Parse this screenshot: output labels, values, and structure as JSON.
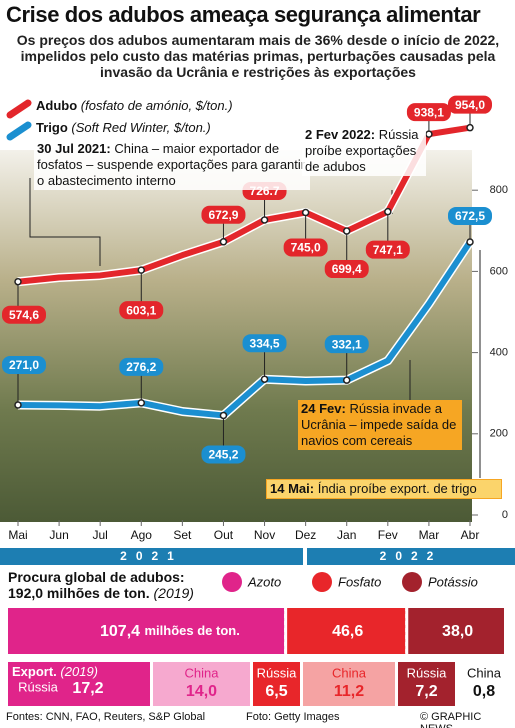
{
  "chart_data": [
    {
      "type": "line",
      "title": "Crise dos adubos ameaça segurança alimentar",
      "subtitle": "Os preços dos adubos aumentaram mais de 36% desde o início de 2022, impelidos pelo custo das matérias primas, perturbações causadas pela invasão da Ucrânia e restrições às exportações",
      "categories": [
        "Mai",
        "Jun",
        "Jul",
        "Ago",
        "Set",
        "Out",
        "Nov",
        "Dez",
        "Jan",
        "Fev",
        "Mar",
        "Abr"
      ],
      "years": [
        "2021",
        "2022"
      ],
      "series": [
        {
          "name": "Adubo",
          "description": "(fosfato de amónio, $/ton.)",
          "color": "#e3262b",
          "values": [
            574.6,
            585,
            590,
            603.1,
            640,
            672.9,
            726.7,
            745.0,
            699.4,
            747.1,
            938.1,
            954.0
          ],
          "value_labels": [
            "574,6",
            null,
            null,
            "603,1",
            null,
            "672,9",
            "726.7",
            "745,0",
            "699,4",
            "747,1",
            "938,1",
            "954,0"
          ]
        },
        {
          "name": "Trigo",
          "description": "(Soft Red Winter, $/ton.)",
          "color": "#1b8fd0",
          "values": [
            271.0,
            270,
            268,
            276.2,
            255,
            245.2,
            334.5,
            330,
            332.1,
            380,
            520,
            672.5
          ],
          "value_labels": [
            "271,0",
            null,
            null,
            "276,2",
            null,
            "245,2",
            "334,5",
            null,
            "332,1",
            null,
            null,
            "672,5"
          ]
        }
      ],
      "ylim": [
        0,
        1000
      ],
      "yticks": [
        0,
        200,
        400,
        600,
        800
      ],
      "annotations": [
        {
          "date": "30 Jul 2021:",
          "text": "China – maior exportador de fosfatos – suspende exportações para garantir o abastecimento interno"
        },
        {
          "date": "2 Fev 2022:",
          "text": "Rússia proíbe exportações de adubos"
        },
        {
          "date": "24 Fev:",
          "text": "Rússia invade a Ucrânia – impede saída de navios com cereais"
        },
        {
          "date": "14 Mai:",
          "text": "Índia proíbe export. de trigo"
        }
      ]
    },
    {
      "type": "stacked-bar",
      "title": "Procura global de adubos:",
      "subtitle": "192,0 milhões de ton.",
      "year": "(2019)",
      "unit": "milhões de ton.",
      "categories": [
        "Azoto",
        "Fosfato",
        "Potássio"
      ],
      "colors": [
        "#e0248a",
        "#e8262a",
        "#a3222d"
      ],
      "values": [
        107.4,
        46.6,
        38.0
      ],
      "value_labels": [
        "107,4",
        "46,6",
        "38,0"
      ],
      "export_label": "Export.",
      "export_year": "(2019)",
      "exports": [
        [
          {
            "country": "Rússia",
            "value": 17.2,
            "value_label": "17,2"
          },
          {
            "country": "China",
            "value": 14.0,
            "value_label": "14,0"
          }
        ],
        [
          {
            "country": "Rússia",
            "value": 6.5,
            "value_label": "6,5"
          },
          {
            "country": "China",
            "value": 11.2,
            "value_label": "11,2"
          }
        ],
        [
          {
            "country": "Rússia",
            "value": 7.2,
            "value_label": "7,2"
          },
          {
            "country": "China",
            "value": 0.8,
            "value_label": "0,8"
          }
        ]
      ]
    }
  ],
  "footer": {
    "sources": "Fontes: CNN, FAO, Reuters, S&P Global",
    "photo": "Foto: Getty Images",
    "credit": "© GRAPHIC NEWS"
  }
}
